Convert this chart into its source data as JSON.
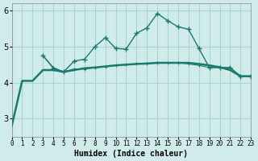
{
  "background_color": "#d0ecea",
  "grid_color": "#aad5d0",
  "line_color": "#1a7a6e",
  "xlabel": "Humidex (Indice chaleur)",
  "xlim": [
    0,
    23
  ],
  "ylim": [
    2.5,
    6.2
  ],
  "yticks": [
    3,
    4,
    5,
    6
  ],
  "xtick_labels": [
    "0",
    "1",
    "2",
    "3",
    "4",
    "5",
    "6",
    "7",
    "8",
    "9",
    "10",
    "11",
    "12",
    "13",
    "14",
    "15",
    "16",
    "17",
    "18",
    "19",
    "20",
    "21",
    "22",
    "23"
  ],
  "series1_x": [
    0,
    1,
    2,
    3,
    4,
    5,
    6,
    7,
    8,
    9,
    10,
    11,
    12,
    13,
    14,
    15,
    16,
    17,
    18,
    19,
    20,
    21,
    22,
    23
  ],
  "series1_y": [
    2.8,
    4.05,
    4.05,
    4.35,
    4.35,
    4.3,
    4.35,
    4.4,
    4.42,
    4.45,
    4.48,
    4.5,
    4.52,
    4.53,
    4.55,
    4.55,
    4.55,
    4.55,
    4.52,
    4.48,
    4.43,
    4.35,
    4.18,
    4.18
  ],
  "series2_x": [
    3,
    4,
    5,
    6,
    7,
    8,
    9,
    10,
    11,
    12,
    13,
    14,
    15,
    16,
    17,
    18,
    19,
    20,
    21,
    22,
    23
  ],
  "series2_y": [
    4.75,
    4.4,
    4.3,
    4.6,
    4.65,
    5.0,
    5.25,
    4.95,
    4.93,
    5.37,
    5.52,
    5.92,
    5.72,
    5.55,
    5.48,
    4.95,
    4.42,
    4.42,
    4.42,
    4.18,
    4.18
  ],
  "series3_x": [
    3,
    4,
    5,
    6,
    7,
    8,
    9,
    10,
    11,
    12,
    13,
    14,
    15,
    16,
    17,
    18,
    19,
    20,
    21,
    22,
    23
  ],
  "series3_y": [
    4.75,
    4.42,
    4.3,
    4.38,
    4.38,
    4.42,
    4.45,
    4.48,
    4.5,
    4.52,
    4.53,
    4.55,
    4.55,
    4.55,
    4.52,
    4.48,
    4.42,
    4.42,
    4.42,
    4.18,
    4.18
  ]
}
